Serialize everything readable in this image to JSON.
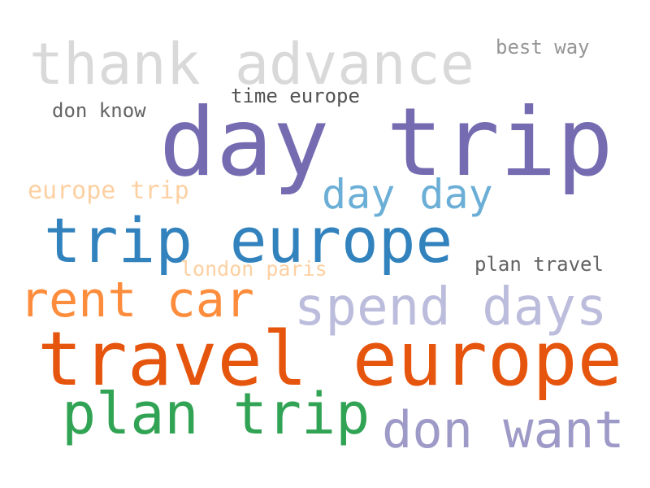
{
  "words": [
    {
      "text": "thank advance",
      "color": "#d9d9d9"
    },
    {
      "text": "best way",
      "color": "#969696"
    },
    {
      "text": "time europe",
      "color": "#525252"
    },
    {
      "text": "don know",
      "color": "#636363"
    },
    {
      "text": "day trip",
      "color": "#756bb1"
    },
    {
      "text": "europe trip",
      "color": "#fdd0a2"
    },
    {
      "text": "day day",
      "color": "#6baed6"
    },
    {
      "text": "trip europe",
      "color": "#3182bd"
    },
    {
      "text": "london paris",
      "color": "#fdd0a2"
    },
    {
      "text": "plan travel",
      "color": "#636363"
    },
    {
      "text": "rent car",
      "color": "#fd8d3c"
    },
    {
      "text": "spend days",
      "color": "#bcbddc"
    },
    {
      "text": "travel europe",
      "color": "#e6550d"
    },
    {
      "text": "plan trip",
      "color": "#31a354"
    },
    {
      "text": "don want",
      "color": "#9e9ac8"
    }
  ]
}
